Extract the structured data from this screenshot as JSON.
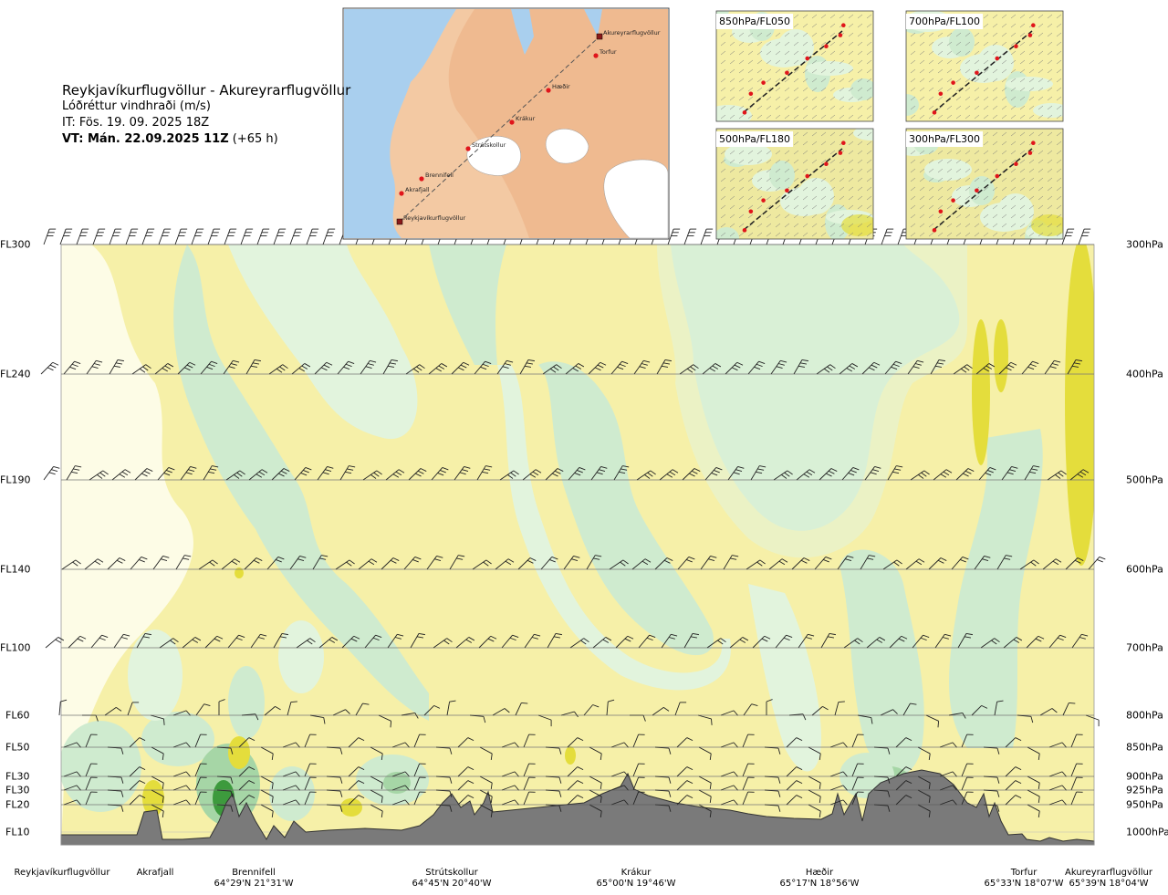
{
  "title": {
    "route": "Reykjavíkurflugvöllur - Akureyrarflugvöllur",
    "subtitle": "Lóðréttur vindhraði (m/s)",
    "issue": "IT: Fös. 19. 09. 2025 18Z",
    "valid_bold": "VT: Mán. 22.09.2025 11Z",
    "valid_rest": " (+65 h)"
  },
  "map": {
    "waypoints": [
      "Akureyrarflugvöllur",
      "Torfur",
      "Hæðir",
      "Krákur",
      "Strútskollur",
      "Brennifell",
      "Akrafjall",
      "Reykjavíkurflugvöllur"
    ]
  },
  "panels": [
    {
      "label": "850hPa/FL050"
    },
    {
      "label": "700hPa/FL100"
    },
    {
      "label": "500hPa/FL180"
    },
    {
      "label": "300hPa/FL300"
    }
  ],
  "levels": [
    {
      "fl": "FL300",
      "hpa": "300hPa"
    },
    {
      "fl": "FL240",
      "hpa": "400hPa"
    },
    {
      "fl": "FL190",
      "hpa": "500hPa"
    },
    {
      "fl": "FL140",
      "hpa": "600hPa"
    },
    {
      "fl": "FL100",
      "hpa": "700hPa"
    },
    {
      "fl": "FL60",
      "hpa": "800hPa"
    },
    {
      "fl": "FL50",
      "hpa": "850hPa"
    },
    {
      "fl": "FL30",
      "hpa": "900hPa"
    },
    {
      "fl": "FL30",
      "hpa": "925hPa"
    },
    {
      "fl": "FL20",
      "hpa": "950hPa"
    },
    {
      "fl": "FL10",
      "hpa": "1000hPa"
    }
  ],
  "bottom_waypoints": [
    {
      "name": "Reykjavíkurflugvöllur",
      "coord": ""
    },
    {
      "name": "Akrafjall",
      "coord": ""
    },
    {
      "name": "Brennifell",
      "coord": "64°29'N 21°31'W"
    },
    {
      "name": "Strútskollur",
      "coord": "64°45'N 20°40'W"
    },
    {
      "name": "Krákur",
      "coord": "65°00'N 19°46'W"
    },
    {
      "name": "Hæðir",
      "coord": "65°17'N 18°56'W"
    },
    {
      "name": "Torfur",
      "coord": "65°33'N 18°07'W"
    },
    {
      "name": "Akureyrarflugvöllur",
      "coord": "65°39'N 18°04'W"
    }
  ],
  "colors": {
    "strong_down": "#e4dd3c",
    "moderate_down": "#f4eb96",
    "weak_down": "#f6f0a8",
    "near_zero": "#fdfce6",
    "weak_up": "#e2f4dd",
    "moderate_up": "#cfebcf",
    "strong_up": "#a6d6a6",
    "very_strong_up": "#3d9a3d",
    "terrain": "#7a7a7a",
    "sea": "#a9cfee",
    "land": "#f3c9a3"
  },
  "chart_data": {
    "type": "heatmap",
    "title": "Reykjavíkurflugvöllur - Akureyrarflugvöllur",
    "variable": "Lóðréttur vindhraði (m/s)",
    "y_axis_left": [
      "FL300",
      "FL240",
      "FL190",
      "FL140",
      "FL100",
      "FL60",
      "FL50",
      "FL30",
      "FL30",
      "FL20",
      "FL10"
    ],
    "y_axis_right": [
      "300hPa",
      "400hPa",
      "500hPa",
      "600hPa",
      "700hPa",
      "800hPa",
      "850hPa",
      "900hPa",
      "925hPa",
      "950hPa",
      "1000hPa"
    ],
    "x_axis_waypoints": [
      "Reykjavíkurflugvöllur",
      "Akrafjall",
      "Brennifell",
      "Strútskollur",
      "Krákur",
      "Hæðir",
      "Torfur",
      "Akureyrarflugvöllur"
    ],
    "legend": "none"
  }
}
